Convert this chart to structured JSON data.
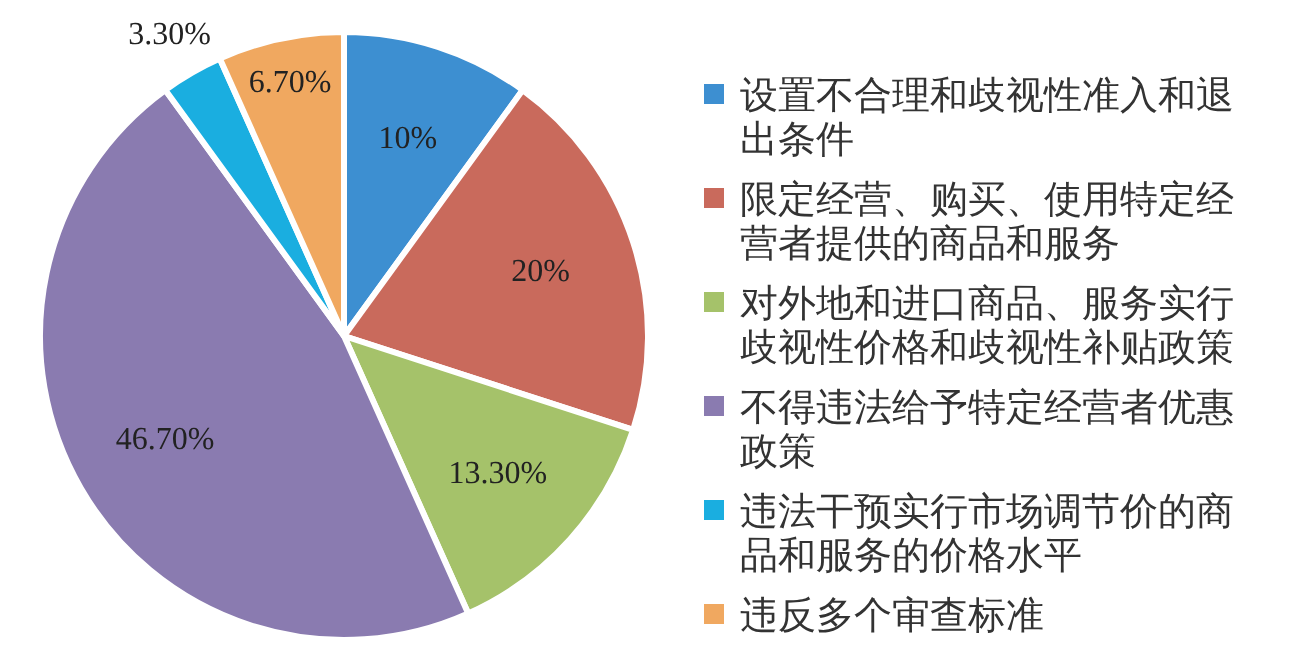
{
  "chart_data": {
    "type": "pie",
    "categories": [
      "设置不合理和歧视性准入和退出条件",
      "限定经营、购买、使用特定经营者提供的商品和服务",
      "对外地和进口商品、服务实行歧视性价格和歧视性补贴政策",
      "不得违法给予特定经营者优惠政策",
      "违法干预实行市场调节价的商品和服务的价格水平",
      "违反多个审查标准"
    ],
    "values": [
      10,
      20,
      13.3,
      46.7,
      3.3,
      6.7
    ],
    "value_labels": [
      "10%",
      "20%",
      "13.30%",
      "46.70%",
      "3.30%",
      "6.70%"
    ],
    "colors": [
      "#3d8fd1",
      "#c96a5c",
      "#a5c26a",
      "#8a7bb0",
      "#1aaee0",
      "#f0a860"
    ],
    "legend": "right"
  }
}
